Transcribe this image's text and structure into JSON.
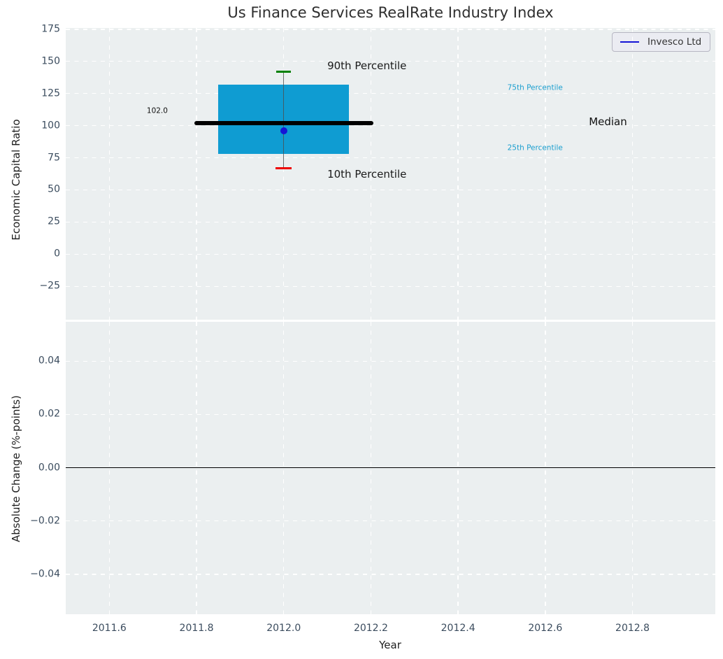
{
  "figure": {
    "title": "Us Finance Services RealRate Industry Index",
    "background_color": "#ffffff",
    "axes_background_color": "#ebeff0",
    "grid_color": "#ffffff",
    "tick_color": "#3b4c5e"
  },
  "legend": {
    "label": "Invesco Ltd",
    "line_color": "#1515d6",
    "position": "upper right"
  },
  "chart_data": [
    {
      "type": "box",
      "subplot": "top",
      "ylabel": "Economic Capital Ratio",
      "xlim": [
        2011.5,
        2012.99
      ],
      "ylim": [
        -51,
        176
      ],
      "grid": "white dashed, on",
      "yticks": [
        {
          "v": 175,
          "label": "175"
        },
        {
          "v": 150,
          "label": "150"
        },
        {
          "v": 125,
          "label": "125"
        },
        {
          "v": 100,
          "label": "100"
        },
        {
          "v": 75,
          "label": "75"
        },
        {
          "v": 50,
          "label": "50"
        },
        {
          "v": 25,
          "label": "25"
        },
        {
          "v": 0,
          "label": "0"
        },
        {
          "v": -25,
          "label": "−25"
        }
      ],
      "boxplot": {
        "x": 2012.0,
        "p10": 67,
        "p25": 78,
        "median": 102.0,
        "p75": 132,
        "p90": 142,
        "box_x_range": [
          2011.85,
          2012.15
        ],
        "median_x_range": [
          2011.795,
          2012.205
        ],
        "cap_halfwidth_years": 0.017,
        "box_color": "#0f9cd2",
        "median_color": "#000000",
        "p90_cap_color": "#008000",
        "p10_cap_color": "#ee0000",
        "whisker_color": "#4d4d4d"
      },
      "series": [
        {
          "name": "Invesco Ltd",
          "type": "scatter",
          "x": 2012.0,
          "y": 96,
          "color": "#1515d6"
        }
      ],
      "annotations": [
        {
          "text": "90th Percentile",
          "x": 2012.1,
          "y": 146,
          "color": "#1a1a1a",
          "size": 15,
          "align": "left"
        },
        {
          "text": "10th Percentile",
          "x": 2012.1,
          "y": 61.5,
          "color": "#1a1a1a",
          "size": 15,
          "align": "left"
        },
        {
          "text": "75th Percentile",
          "x": 2012.513,
          "y": 129,
          "color": "#1b9fcf",
          "size": 10.5,
          "align": "left"
        },
        {
          "text": "25th Percentile",
          "x": 2012.513,
          "y": 82.5,
          "color": "#1b9fcf",
          "size": 10.5,
          "align": "left"
        },
        {
          "text": "Median",
          "x": 2012.7,
          "y": 102.5,
          "color": "#111111",
          "size": 15,
          "align": "left"
        },
        {
          "text": "102.0",
          "x": 2011.71,
          "y": 111,
          "color": "#111111",
          "size": 10.5,
          "align": "center"
        }
      ]
    },
    {
      "type": "line",
      "subplot": "bottom",
      "ylabel": "Absolute Change (%-points)",
      "xlabel": "Year",
      "xlim": [
        2011.5,
        2012.99
      ],
      "ylim": [
        -0.055,
        0.0548
      ],
      "grid": "white dashed, on",
      "yticks": [
        {
          "v": 0.04,
          "label": "0.04"
        },
        {
          "v": 0.02,
          "label": "0.02"
        },
        {
          "v": 0.0,
          "label": "0.00"
        },
        {
          "v": -0.02,
          "label": "−0.02"
        },
        {
          "v": -0.04,
          "label": "−0.04"
        }
      ],
      "xticks": [
        {
          "v": 2011.6,
          "label": "2011.6"
        },
        {
          "v": 2011.8,
          "label": "2011.8"
        },
        {
          "v": 2012.0,
          "label": "2012.0"
        },
        {
          "v": 2012.2,
          "label": "2012.2"
        },
        {
          "v": 2012.4,
          "label": "2012.4"
        },
        {
          "v": 2012.6,
          "label": "2012.6"
        },
        {
          "v": 2012.8,
          "label": "2012.8"
        }
      ],
      "zero_line": {
        "y": 0.0,
        "color": "#000000"
      },
      "series": []
    }
  ]
}
